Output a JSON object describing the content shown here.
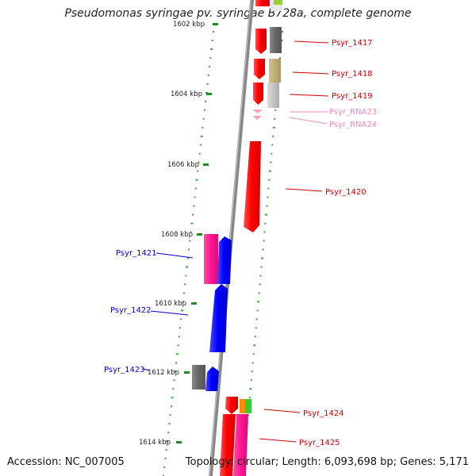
{
  "title": "Pseudomonas syringae pv. syringae B728a, complete genome",
  "footer": {
    "accession": "Accession: NC_007005",
    "stats": "Topology: circular; Length: 6,093,698 bp; Genes: 5,171"
  },
  "scale_labels": [
    "1602 kbp",
    "1604 kbp",
    "1606 kbp",
    "1608 kbp",
    "1610 kbp",
    "1612 kbp",
    "1614 kbp"
  ],
  "genes": [
    {
      "name": "Psyr_1417",
      "color": "#cc0000"
    },
    {
      "name": "Psyr_1418",
      "color": "#cc0000"
    },
    {
      "name": "Psyr_1419",
      "color": "#cc0000"
    },
    {
      "name": "Psyr_RNA23",
      "color": "#ee88bb"
    },
    {
      "name": "Psyr_RNA24",
      "color": "#ee88bb"
    },
    {
      "name": "Psyr_1420",
      "color": "#cc0000"
    },
    {
      "name": "Psyr_1421",
      "color": "#0000cc"
    },
    {
      "name": "Psyr_1422",
      "color": "#0000cc"
    },
    {
      "name": "Psyr_1423",
      "color": "#0000cc"
    },
    {
      "name": "Psyr_1424",
      "color": "#cc0000"
    },
    {
      "name": "Psyr_1425",
      "color": "#cc0000"
    }
  ]
}
